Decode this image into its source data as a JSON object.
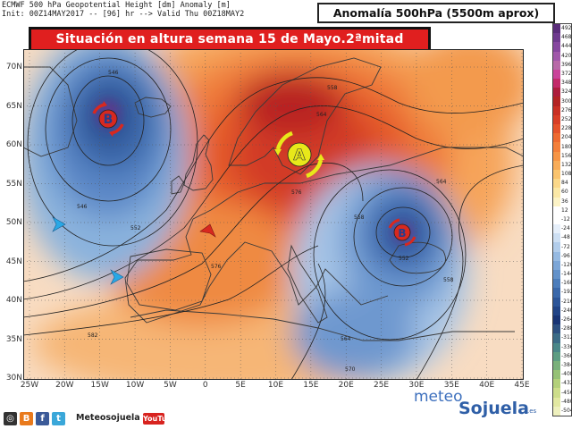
{
  "header": {
    "line1": "ECMWF 500 hPa Geopotential Height [dm] Anomaly [m]",
    "line2": "Init: 00Z14MAY2017 -- [96] hr --> Valid Thu 00Z18MAY2",
    "box_title": "Anomalía 500hPa (5500m aprox)"
  },
  "title": "Situación en altura semana 15 de Mayo.2ªmitad",
  "map": {
    "lat_labels": [
      "70N",
      "65N",
      "60N",
      "55N",
      "50N",
      "45N",
      "40N",
      "35N",
      "30N"
    ],
    "lon_labels": [
      "25W",
      "20W",
      "15W",
      "10W",
      "5W",
      "0",
      "5E",
      "10E",
      "15E",
      "20E",
      "25E",
      "30E",
      "35E",
      "40E",
      "45E"
    ],
    "contour_labels": [
      "546",
      "546",
      "552",
      "558",
      "564",
      "576",
      "582",
      "558",
      "564",
      "552",
      "558",
      "564",
      "570",
      "576"
    ],
    "systems": [
      {
        "symbol": "B",
        "type": "low",
        "color": "#d8281f"
      },
      {
        "symbol": "A",
        "type": "high",
        "color": "#e8e81a"
      },
      {
        "symbol": "B",
        "type": "low",
        "color": "#d8281f"
      }
    ],
    "flow_arrows": [
      {
        "name": "west-flow-arrow-north",
        "color": "#29a8e6"
      },
      {
        "name": "west-flow-arrow-south",
        "color": "#29a8e6"
      },
      {
        "name": "warm-advection-arrow",
        "color": "#d8281f"
      }
    ]
  },
  "legend": {
    "values": [
      "492",
      "468",
      "444",
      "420",
      "396",
      "372",
      "348",
      "324",
      "300",
      "276",
      "252",
      "228",
      "204",
      "180",
      "156",
      "132",
      "108",
      "84",
      "60",
      "36",
      "12",
      "-12",
      "-24",
      "-48",
      "-72",
      "-96",
      "-120",
      "-144",
      "-168",
      "-192",
      "-216",
      "-240",
      "-264",
      "-288",
      "-312",
      "-336",
      "-360",
      "-384",
      "-408",
      "-432",
      "-456",
      "-480",
      "-504"
    ],
    "colors": [
      "#5a2d7a",
      "#6e3a8e",
      "#86479f",
      "#a058aa",
      "#b86aa8",
      "#c9449a",
      "#c22a6a",
      "#ad1d3d",
      "#b32424",
      "#c93024",
      "#d83e26",
      "#e5522a",
      "#ee6a30",
      "#f37f3a",
      "#f69546",
      "#f8ac58",
      "#fac46e",
      "#fbd889",
      "#fbe8a6",
      "#fcf3c6",
      "#ffffff",
      "#ffffff",
      "#e6effa",
      "#cddff3",
      "#b2cdeb",
      "#96bae2",
      "#7ca6d7",
      "#6392ca",
      "#4c7dbb",
      "#3a68aa",
      "#2c5598",
      "#214486",
      "#183474",
      "#2c4f80",
      "#3b6b86",
      "#4a8788",
      "#5d9d82",
      "#79b07b",
      "#96c176",
      "#b3d07a",
      "#cddd8a",
      "#e2e8a1",
      "#eef0bd"
    ]
  },
  "footer": {
    "handle": "Meteosojuela",
    "youtube": "YouTube",
    "logo_meteo": "meteo",
    "logo_sojuela": "Sojuela",
    "logo_es": ".es"
  },
  "colors": {
    "title_bg": "#e01f1f",
    "ocean": "#f3f3f3"
  }
}
